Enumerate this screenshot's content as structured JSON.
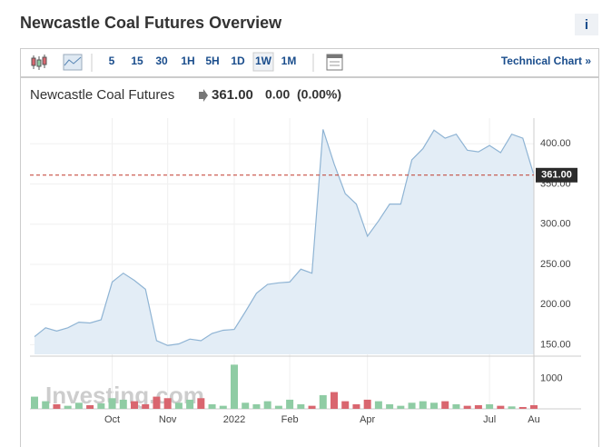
{
  "header": {
    "title": "Newcastle Coal Futures Overview",
    "info": "i"
  },
  "toolbar": {
    "intervals": [
      "5",
      "15",
      "30",
      "1H",
      "5H",
      "1D",
      "1W",
      "1M"
    ],
    "selected": "1W",
    "link": "Technical Chart »"
  },
  "quote": {
    "name": "Newcastle Coal Futures",
    "price": "361.00",
    "change": "0.00",
    "change_pct": "(0.00%)"
  },
  "watermark": "Investing.com",
  "chart_data": [
    {
      "type": "area",
      "color": "#8fb4d4",
      "fill": "#e3edf6",
      "categories": [
        null,
        null,
        null,
        null,
        null,
        null,
        null,
        "Oct",
        null,
        null,
        null,
        null,
        "Nov",
        null,
        null,
        null,
        null,
        null,
        "2022",
        null,
        null,
        null,
        null,
        "Feb",
        null,
        null,
        null,
        null,
        null,
        null,
        "Apr",
        null,
        null,
        null,
        null,
        null,
        null,
        null,
        null,
        null,
        null,
        "Jul",
        null,
        null,
        null,
        "Au"
      ],
      "values": [
        160,
        171,
        167,
        171,
        178,
        177,
        181,
        228,
        239,
        230,
        219,
        155,
        149,
        151,
        157,
        155,
        164,
        168,
        169,
        191,
        214,
        225,
        227,
        228,
        244,
        239,
        418,
        375,
        338,
        325,
        285,
        304,
        325,
        325,
        380,
        394,
        417,
        407,
        412,
        392,
        390,
        398,
        389,
        412,
        407,
        361
      ],
      "ylim": [
        138,
        432
      ],
      "yticks": [
        {
          "value": 150,
          "label": "150.00"
        },
        {
          "value": 200,
          "label": "200.00"
        },
        {
          "value": 250,
          "label": "250.00"
        },
        {
          "value": 300,
          "label": "300.00"
        },
        {
          "value": 350,
          "label": "350.00"
        },
        {
          "value": 400,
          "label": "400.00"
        }
      ],
      "current": {
        "value": 361,
        "label": "361.00",
        "color": "#c0392b"
      },
      "grid": true
    },
    {
      "type": "bar",
      "up_color": "#8fcca4",
      "down_color": "#d9666f",
      "values": [
        400,
        250,
        150,
        100,
        200,
        120,
        180,
        350,
        300,
        250,
        150,
        400,
        350,
        200,
        300,
        350,
        150,
        100,
        1450,
        200,
        150,
        250,
        100,
        300,
        150,
        100,
        450,
        550,
        250,
        150,
        300,
        250,
        150,
        100,
        200,
        250,
        200,
        250,
        150,
        100,
        120,
        150,
        100,
        80,
        60,
        120
      ],
      "ylim": [
        0,
        1700
      ],
      "yticks": [
        1000
      ]
    }
  ]
}
